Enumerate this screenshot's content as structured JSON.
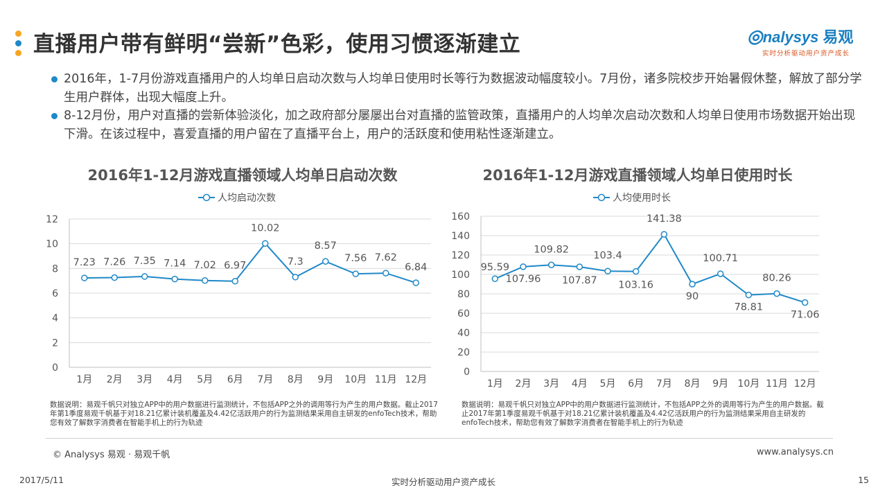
{
  "header": {
    "title": "直播用户带有鲜明“尝新”色彩，使用习惯逐渐建立",
    "dot_colors": [
      "#f5a623",
      "#1e88c8",
      "#f5a623"
    ],
    "logo": {
      "brand_en": "nalysys",
      "brand_cn": "易观",
      "tagline": "实时分析驱动用户资产成长"
    }
  },
  "bullets": [
    "2016年，1-7月份游戏直播用户的人均单日启动次数与人均单日使用时长等行为数据波动幅度较小。7月份，诸多院校步开始暑假休整，解放了部分学生用户群体，出现大幅度上升。",
    "8-12月份，用户对直播的尝新体验淡化，加之政府部分屡屡出台对直播的监管政策，直播用户的人均单次启动次数和人均单日使用市场数据开始出现下滑。在该过程中，喜爱直播的用户留在了直播平台上，用户的活跃度和使用粘性逐渐建立。"
  ],
  "chart_data": [
    {
      "type": "line",
      "title": "2016年1-12月游戏直播领域人均单日启动次数",
      "categories": [
        "1月",
        "2月",
        "3月",
        "4月",
        "5月",
        "6月",
        "7月",
        "8月",
        "9月",
        "10月",
        "11月",
        "12月"
      ],
      "series": [
        {
          "name": "人均启动次数",
          "values": [
            7.23,
            7.26,
            7.35,
            7.14,
            7.02,
            6.97,
            10.02,
            7.3,
            8.57,
            7.56,
            7.62,
            6.84
          ]
        }
      ],
      "value_labels": [
        "7.23",
        "7.26",
        "7.35",
        "7.14",
        "7.02",
        "6.97",
        "10.02",
        "7.3",
        "8.57",
        "7.56",
        "7.62",
        "6.84"
      ],
      "ylim": [
        0,
        12
      ],
      "yticks": [
        0,
        2,
        4,
        6,
        8,
        10,
        12
      ],
      "grid": true,
      "legend": "top-center",
      "color": "#1e88c8"
    },
    {
      "type": "line",
      "title": "2016年1-12月游戏直播领域人均单日使用时长",
      "categories": [
        "1月",
        "2月",
        "3月",
        "4月",
        "5月",
        "6月",
        "7月",
        "8月",
        "9月",
        "10月",
        "11月",
        "12月"
      ],
      "series": [
        {
          "name": "人均使用时长",
          "values": [
            95.59,
            107.96,
            109.82,
            107.87,
            103.4,
            103.16,
            141.38,
            90,
            100.71,
            78.81,
            80.26,
            71.06
          ]
        }
      ],
      "value_labels": [
        "95.59",
        "107.96",
        "109.82",
        "107.87",
        "103.4",
        "103.16",
        "141.38",
        "90",
        "100.71",
        "78.81",
        "80.26",
        "71.06"
      ],
      "ylim": [
        0,
        160
      ],
      "yticks": [
        0,
        20,
        40,
        60,
        80,
        100,
        120,
        140,
        160
      ],
      "grid": true,
      "legend": "top-center",
      "color": "#1e88c8"
    }
  ],
  "notes": [
    "数据说明：易观千帆只对独立APP中的用户数据进行监测统计，不包括APP之外的调用等行为产生的用户数据。截止2017年第1季度易观千帆基于对18.21亿累计装机覆盖及4.42亿活跃用户的行为监测结果采用自主研发的enfoTech技术，帮助您有效了解数字消费者在智能手机上的行为轨迹",
    "数据说明：易观千帆只对独立APP中的用户数据进行监测统计，不包括APP之外的调用等行为产生的用户数据。截止2017年第1季度易观千帆基于对18.21亿累计装机覆盖及4.42亿活跃用户的行为监测结果采用自主研发的enfoTech技术，帮助您有效了解数字消费者在智能手机上的行为轨迹"
  ],
  "footer": {
    "copyright": "© Analysys 易观 · 易观千帆",
    "website": "www.analysys.cn",
    "date": "2017/5/11",
    "tagline": "实时分析驱动用户资产成长",
    "page_number": "15"
  },
  "watermark": {
    "brand": "nalysys 易观",
    "tagline": "实时分析驱动用户资产成长"
  }
}
